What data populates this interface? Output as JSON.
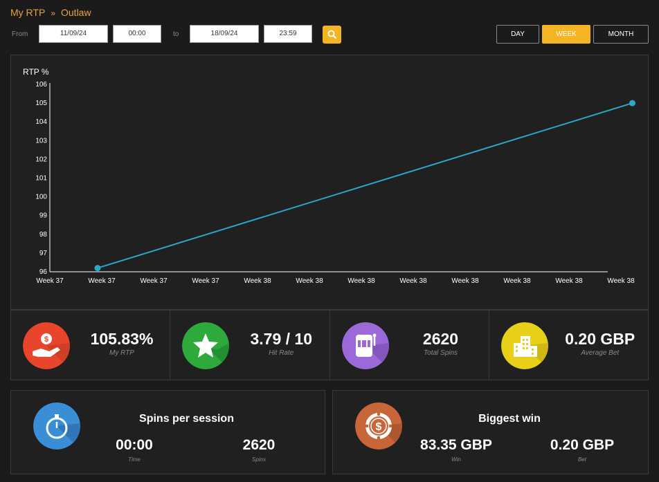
{
  "breadcrumb": {
    "root": "My RTP",
    "separator": "»",
    "current": "Outlaw"
  },
  "filters": {
    "from_label": "From",
    "from_date": "11/09/24",
    "from_time": "00:00",
    "to_label": "to",
    "to_date": "18/09/24",
    "to_time": "23:59",
    "search_icon": "search-icon",
    "periods": [
      "DAY",
      "WEEK",
      "MONTH"
    ],
    "active_period": "WEEK"
  },
  "chart_data": {
    "type": "line",
    "ylabel": "RTP %",
    "ylim": [
      96,
      106
    ],
    "yticks": [
      "96",
      "97",
      "98",
      "99",
      "100",
      "101",
      "102",
      "103",
      "104",
      "105",
      "106"
    ],
    "categories": [
      "Week 37",
      "Week 37",
      "Week 37",
      "Week 37",
      "Week 38",
      "Week 38",
      "Week 38",
      "Week 38",
      "Week 38",
      "Week 38",
      "Week 38",
      "Week 38"
    ],
    "series": [
      {
        "points": [
          {
            "x": 0.6,
            "y": 96.2
          },
          {
            "x": 10.9,
            "y": 105.0
          }
        ],
        "color": "#2aa7c9"
      }
    ]
  },
  "stats": [
    {
      "value": "105.83%",
      "label": "My RTP",
      "icon": "hand-money-icon",
      "color": "#e8452c"
    },
    {
      "value": "3.79 / 10",
      "label": "Hit Rate",
      "icon": "star-icon",
      "color": "#2eaa3c"
    },
    {
      "value": "2620",
      "label": "Total Spins",
      "icon": "slot-machine-icon",
      "color": "#9b6ad8"
    },
    {
      "value": "0.20 GBP",
      "label": "Average Bet",
      "icon": "coin-stack-icon",
      "color": "#e8cf1a"
    }
  ],
  "spins_session": {
    "title": "Spins per session",
    "time_value": "00:00",
    "time_label": "Time",
    "spins_value": "2620",
    "spins_label": "Spins",
    "icon": "stopwatch-icon",
    "color": "#3a8ed6"
  },
  "biggest_win": {
    "title": "Biggest win",
    "win_value": "83.35 GBP",
    "win_label": "Win",
    "bet_value": "0.20 GBP",
    "bet_label": "Bet",
    "icon": "casino-chip-icon",
    "color": "#c8663a"
  }
}
